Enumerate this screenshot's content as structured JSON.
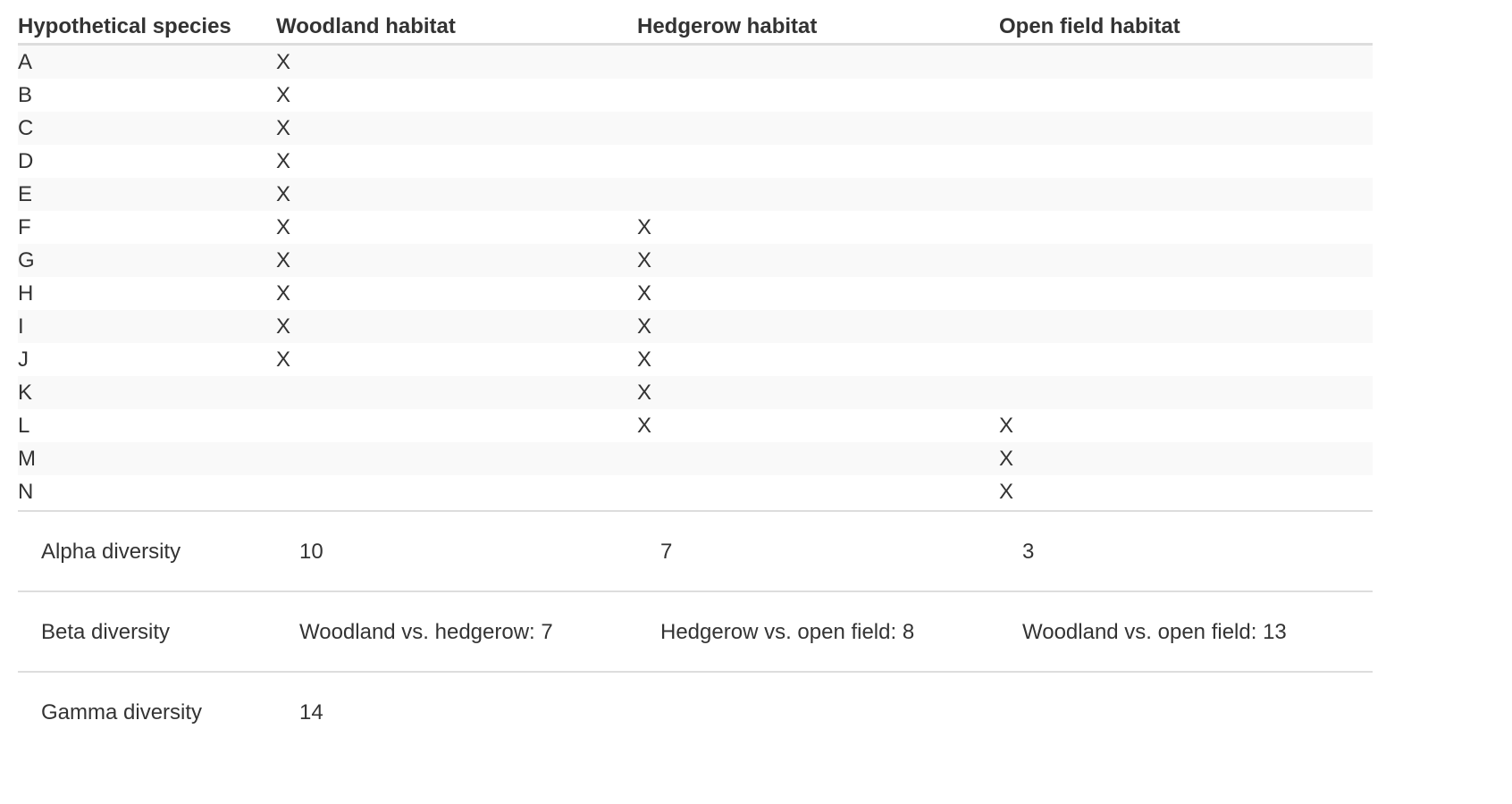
{
  "table": {
    "headers": [
      "Hypothetical species",
      "Woodland habitat",
      "Hedgerow habitat",
      "Open field habitat"
    ],
    "rows": [
      [
        "A",
        "X",
        "",
        ""
      ],
      [
        "B",
        "X",
        "",
        ""
      ],
      [
        "C",
        "X",
        "",
        ""
      ],
      [
        "D",
        "X",
        "",
        ""
      ],
      [
        "E",
        "X",
        "",
        ""
      ],
      [
        "F",
        "X",
        "X",
        ""
      ],
      [
        "G",
        "X",
        "X",
        ""
      ],
      [
        "H",
        "X",
        "X",
        ""
      ],
      [
        "I",
        "X",
        "X",
        ""
      ],
      [
        "J",
        "X",
        "X",
        ""
      ],
      [
        "K",
        "",
        "X",
        ""
      ],
      [
        "L",
        "",
        "X",
        "X"
      ],
      [
        "M",
        "",
        "",
        "X"
      ],
      [
        "N",
        "",
        "",
        "X"
      ]
    ]
  },
  "summary": {
    "rows": [
      [
        "Alpha diversity",
        "10",
        "7",
        "3"
      ],
      [
        "Beta diversity",
        "Woodland vs. hedgerow: 7",
        "Hedgerow vs. open field: 8",
        "Woodland vs. open field: 13"
      ],
      [
        "Gamma diversity",
        "14",
        "",
        ""
      ]
    ]
  }
}
